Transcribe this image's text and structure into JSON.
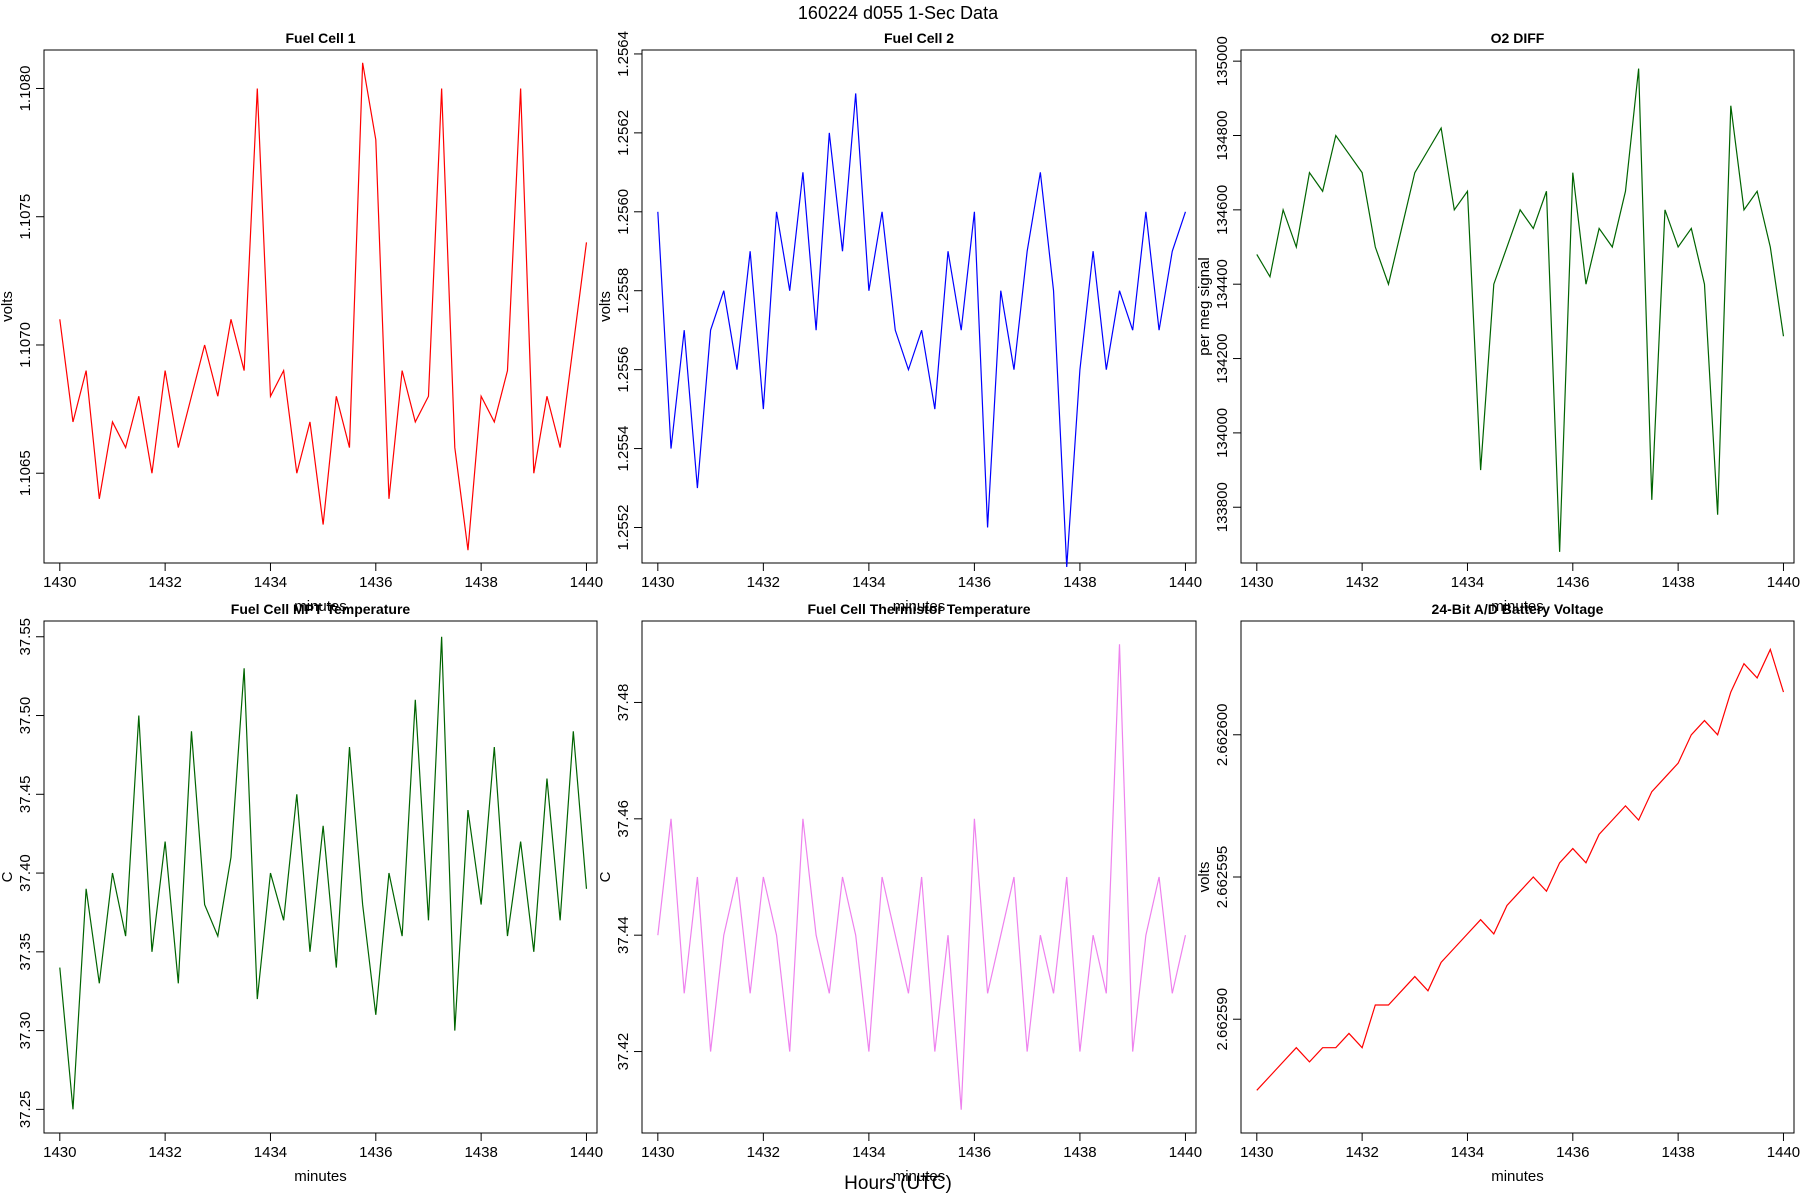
{
  "suptitle": "160224   d055   1-Sec Data",
  "supxlabel": "Hours (UTC)",
  "chart_data": [
    {
      "type": "line",
      "title": "Fuel Cell 1",
      "xlabel": "minutes",
      "ylabel": "volts",
      "color": "#ff0000",
      "x": [
        1430,
        1430.25,
        1430.5,
        1430.75,
        1431,
        1431.25,
        1431.5,
        1431.75,
        1432,
        1432.25,
        1432.5,
        1432.75,
        1433,
        1433.25,
        1433.5,
        1433.75,
        1434,
        1434.25,
        1434.5,
        1434.75,
        1435,
        1435.25,
        1435.5,
        1435.75,
        1436,
        1436.25,
        1436.5,
        1436.75,
        1437,
        1437.25,
        1437.5,
        1437.75,
        1438,
        1438.25,
        1438.5,
        1438.75,
        1439,
        1439.25,
        1439.5,
        1439.75,
        1440
      ],
      "values": [
        1.1071,
        1.1067,
        1.1069,
        1.1064,
        1.1067,
        1.1066,
        1.1068,
        1.1065,
        1.1069,
        1.1066,
        1.1068,
        1.107,
        1.1068,
        1.1071,
        1.1069,
        1.108,
        1.1068,
        1.1069,
        1.1065,
        1.1067,
        1.1063,
        1.1068,
        1.1066,
        1.1081,
        1.1078,
        1.1064,
        1.1069,
        1.1067,
        1.1068,
        1.108,
        1.1066,
        1.1062,
        1.1068,
        1.1067,
        1.1069,
        1.108,
        1.1065,
        1.1068,
        1.1066,
        1.107,
        1.1074
      ],
      "xlim": [
        1429.7,
        1440.2
      ],
      "ylim": [
        1.10615,
        1.10815
      ],
      "xticks": [
        1430,
        1432,
        1434,
        1436,
        1438,
        1440
      ],
      "yticks": [
        1.1065,
        {
          "value": 1.107,
          "label": "1.1070"
        },
        1.1075,
        {
          "value": 1.108,
          "label": "1.1080"
        }
      ]
    },
    {
      "type": "line",
      "title": "Fuel Cell 2",
      "xlabel": "minutes",
      "ylabel": "volts",
      "color": "#0000ff",
      "x": [
        1430,
        1430.25,
        1430.5,
        1430.75,
        1431,
        1431.25,
        1431.5,
        1431.75,
        1432,
        1432.25,
        1432.5,
        1432.75,
        1433,
        1433.25,
        1433.5,
        1433.75,
        1434,
        1434.25,
        1434.5,
        1434.75,
        1435,
        1435.25,
        1435.5,
        1435.75,
        1436,
        1436.25,
        1436.5,
        1436.75,
        1437,
        1437.25,
        1437.5,
        1437.75,
        1438,
        1438.25,
        1438.5,
        1438.75,
        1439,
        1439.25,
        1439.5,
        1439.75,
        1440
      ],
      "values": [
        1.256,
        1.2554,
        1.2557,
        1.2553,
        1.2557,
        1.2558,
        1.2556,
        1.2559,
        1.2555,
        1.256,
        1.2558,
        1.2561,
        1.2557,
        1.2562,
        1.2559,
        1.2563,
        1.2558,
        1.256,
        1.2557,
        1.2556,
        1.2557,
        1.2555,
        1.2559,
        1.2557,
        1.256,
        1.2552,
        1.2558,
        1.2556,
        1.2559,
        1.2561,
        1.2558,
        1.2551,
        1.2556,
        1.2559,
        1.2556,
        1.2558,
        1.2557,
        1.256,
        1.2557,
        1.2559,
        1.256
      ],
      "xlim": [
        1429.7,
        1440.2
      ],
      "ylim": [
        1.25511,
        1.25641
      ],
      "xticks": [
        1430,
        1432,
        1434,
        1436,
        1438,
        1440
      ],
      "yticks": [
        1.2552,
        1.2554,
        1.2556,
        1.2558,
        {
          "value": 1.256,
          "label": "1.2560"
        },
        1.2562,
        1.2564
      ]
    },
    {
      "type": "line",
      "title": "O2 DIFF",
      "xlabel": "minutes",
      "ylabel": "per meg signal",
      "color": "#006400",
      "x": [
        1430,
        1430.25,
        1430.5,
        1430.75,
        1431,
        1431.25,
        1431.5,
        1431.75,
        1432,
        1432.25,
        1432.5,
        1432.75,
        1433,
        1433.25,
        1433.5,
        1433.75,
        1434,
        1434.25,
        1434.5,
        1434.75,
        1435,
        1435.25,
        1435.5,
        1435.75,
        1436,
        1436.25,
        1436.5,
        1436.75,
        1437,
        1437.25,
        1437.5,
        1437.75,
        1438,
        1438.25,
        1438.5,
        1438.75,
        1439,
        1439.25,
        1439.5,
        1439.75,
        1440
      ],
      "values": [
        134480,
        134420,
        134600,
        134500,
        134700,
        134650,
        134800,
        134750,
        134700,
        134500,
        134400,
        134550,
        134700,
        134760,
        134820,
        134600,
        134650,
        133900,
        134400,
        134500,
        134600,
        134550,
        134650,
        133680,
        134700,
        134400,
        134550,
        134500,
        134650,
        134980,
        133820,
        134600,
        134500,
        134550,
        134400,
        133780,
        134880,
        134600,
        134650,
        134500,
        134260
      ],
      "xlim": [
        1429.7,
        1440.2
      ],
      "ylim": [
        133650,
        135030
      ],
      "xticks": [
        1430,
        1432,
        1434,
        1436,
        1438,
        1440
      ],
      "yticks": [
        133800,
        134000,
        134200,
        134400,
        134600,
        134800,
        135000
      ]
    },
    {
      "type": "line",
      "title": "Fuel Cell MPT Temperature",
      "xlabel": "minutes",
      "ylabel": "C",
      "color": "#006400",
      "x": [
        1430,
        1430.25,
        1430.5,
        1430.75,
        1431,
        1431.25,
        1431.5,
        1431.75,
        1432,
        1432.25,
        1432.5,
        1432.75,
        1433,
        1433.25,
        1433.5,
        1433.75,
        1434,
        1434.25,
        1434.5,
        1434.75,
        1435,
        1435.25,
        1435.5,
        1435.75,
        1436,
        1436.25,
        1436.5,
        1436.75,
        1437,
        1437.25,
        1437.5,
        1437.75,
        1438,
        1438.25,
        1438.5,
        1438.75,
        1439,
        1439.25,
        1439.5,
        1439.75,
        1440
      ],
      "values": [
        37.34,
        37.25,
        37.39,
        37.33,
        37.4,
        37.36,
        37.5,
        37.35,
        37.42,
        37.33,
        37.49,
        37.38,
        37.36,
        37.41,
        37.53,
        37.32,
        37.4,
        37.37,
        37.45,
        37.35,
        37.43,
        37.34,
        37.48,
        37.38,
        37.31,
        37.4,
        37.36,
        37.51,
        37.37,
        37.55,
        37.3,
        37.44,
        37.38,
        37.48,
        37.36,
        37.42,
        37.35,
        37.46,
        37.37,
        37.49,
        37.39
      ],
      "xlim": [
        1429.7,
        1440.2
      ],
      "ylim": [
        37.235,
        37.56
      ],
      "xticks": [
        1430,
        1432,
        1434,
        1436,
        1438,
        1440
      ],
      "yticks": [
        37.25,
        {
          "value": 37.3,
          "label": "37.30"
        },
        37.35,
        {
          "value": 37.4,
          "label": "37.40"
        },
        37.45,
        {
          "value": 37.5,
          "label": "37.50"
        },
        37.55
      ]
    },
    {
      "type": "line",
      "title": "Fuel Cell Thermistor Temperature",
      "xlabel": "minutes",
      "ylabel": "C",
      "color": "#ee82ee",
      "x": [
        1430,
        1430.25,
        1430.5,
        1430.75,
        1431,
        1431.25,
        1431.5,
        1431.75,
        1432,
        1432.25,
        1432.5,
        1432.75,
        1433,
        1433.25,
        1433.5,
        1433.75,
        1434,
        1434.25,
        1434.5,
        1434.75,
        1435,
        1435.25,
        1435.5,
        1435.75,
        1436,
        1436.25,
        1436.5,
        1436.75,
        1437,
        1437.25,
        1437.5,
        1437.75,
        1438,
        1438.25,
        1438.5,
        1438.75,
        1439,
        1439.25,
        1439.5,
        1439.75,
        1440
      ],
      "values": [
        37.44,
        37.46,
        37.43,
        37.45,
        37.42,
        37.44,
        37.45,
        37.43,
        37.45,
        37.44,
        37.42,
        37.46,
        37.44,
        37.43,
        37.45,
        37.44,
        37.42,
        37.45,
        37.44,
        37.43,
        37.45,
        37.42,
        37.44,
        37.41,
        37.46,
        37.43,
        37.44,
        37.45,
        37.42,
        37.44,
        37.43,
        37.45,
        37.42,
        37.44,
        37.43,
        37.49,
        37.42,
        37.44,
        37.45,
        37.43,
        37.44
      ],
      "xlim": [
        1429.7,
        1440.2
      ],
      "ylim": [
        37.406,
        37.494
      ],
      "xticks": [
        1430,
        1432,
        1434,
        1436,
        1438,
        1440
      ],
      "yticks": [
        37.42,
        37.44,
        37.46,
        37.48
      ]
    },
    {
      "type": "line",
      "title": "24-Bit A/D Battery Voltage",
      "xlabel": "minutes",
      "ylabel": "volts",
      "color": "#ff0000",
      "x": [
        1430,
        1430.25,
        1430.5,
        1430.75,
        1431,
        1431.25,
        1431.5,
        1431.75,
        1432,
        1432.25,
        1432.5,
        1432.75,
        1433,
        1433.25,
        1433.5,
        1433.75,
        1434,
        1434.25,
        1434.5,
        1434.75,
        1435,
        1435.25,
        1435.5,
        1435.75,
        1436,
        1436.25,
        1436.5,
        1436.75,
        1437,
        1437.25,
        1437.5,
        1437.75,
        1438,
        1438.25,
        1438.5,
        1438.75,
        1439,
        1439.25,
        1439.5,
        1439.75,
        1440
      ],
      "values": [
        2.6625875,
        2.662588,
        2.6625885,
        2.662589,
        2.6625885,
        2.662589,
        2.662589,
        2.6625895,
        2.662589,
        2.6625905,
        2.6625905,
        2.662591,
        2.6625915,
        2.662591,
        2.662592,
        2.6625925,
        2.662593,
        2.6625935,
        2.662593,
        2.662594,
        2.6625945,
        2.662595,
        2.6625945,
        2.6625955,
        2.662596,
        2.6625955,
        2.6625965,
        2.662597,
        2.6625975,
        2.662597,
        2.662598,
        2.6625985,
        2.662599,
        2.6626,
        2.6626005,
        2.6626,
        2.6626015,
        2.6626025,
        2.662602,
        2.662603,
        2.6626015
      ],
      "xlim": [
        1429.7,
        1440.2
      ],
      "ylim": [
        2.662586,
        2.662604
      ],
      "xticks": [
        1430,
        1432,
        1434,
        1436,
        1438,
        1440
      ],
      "yticks": [
        {
          "value": 2.66259,
          "label": "2.662590"
        },
        2.662595,
        {
          "value": 2.6626,
          "label": "2.662600"
        }
      ]
    }
  ]
}
